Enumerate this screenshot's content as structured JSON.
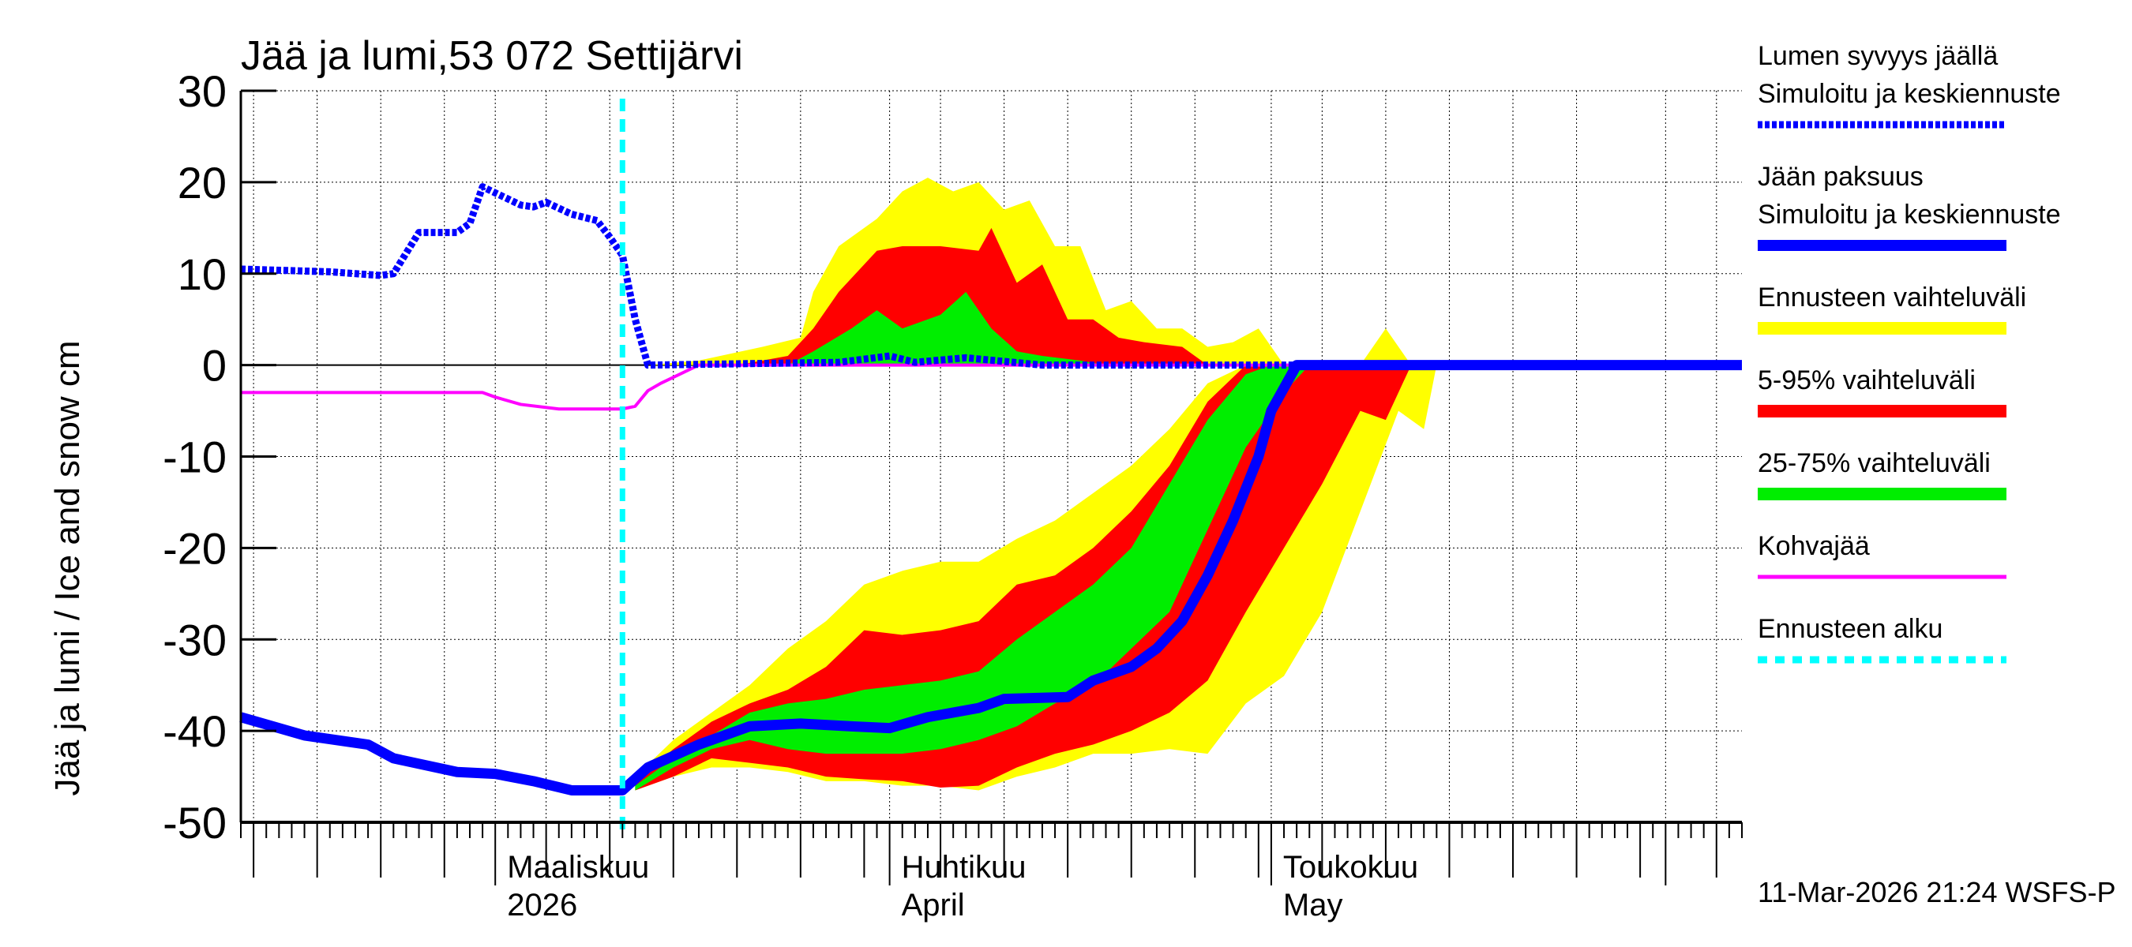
{
  "chart_data": {
    "type": "area",
    "title": "Jää ja lumi,53 072 Settijärvi",
    "ylabel": "Jää ja lumi / Ice and snow    cm",
    "ylim": [
      -50,
      30
    ],
    "yticks": [
      30,
      20,
      10,
      0,
      -10,
      -20,
      -30,
      -40,
      -50
    ],
    "xlim": [
      "2026-02-09",
      "2026-06-07"
    ],
    "xtick_labels": [
      {
        "date": "2026-03-01",
        "line1": "Maaliskuu",
        "line2": "2026"
      },
      {
        "date": "2026-04-01",
        "line1": "Huhtikuu",
        "line2": "April"
      },
      {
        "date": "2026-05-01",
        "line1": "Toukokuu",
        "line2": "May"
      }
    ],
    "grid": true,
    "legend_placement": "right",
    "forecast_start": "2026-03-11",
    "timestamp": "11-Mar-2026 21:24 WSFS-P",
    "legend": [
      {
        "line1": "Lumen syvyys jäällä",
        "line2": "Simuloitu ja keskiennuste",
        "color": "#0000ff",
        "style": "dotted"
      },
      {
        "line1": "Jään paksuus",
        "line2": "Simuloitu ja keskiennuste",
        "color": "#0000ff",
        "style": "solid"
      },
      {
        "line1": "Ennusteen vaihteluväli",
        "color": "#ffff00",
        "style": "band"
      },
      {
        "line1": "5-95% vaihteluväli",
        "color": "#ff0000",
        "style": "band"
      },
      {
        "line1": "25-75% vaihteluväli",
        "color": "#00ee00",
        "style": "band"
      },
      {
        "line1": "Kohvajää",
        "color": "#ff00ff",
        "style": "solid"
      },
      {
        "line1": "Ennusteen alku",
        "color": "#00ffff",
        "style": "dashed"
      }
    ],
    "bands": {
      "ice_yellow": {
        "upper": [
          [
            "2026-03-12",
            -45
          ],
          [
            "2026-03-15",
            -41
          ],
          [
            "2026-03-18",
            -38
          ],
          [
            "2026-03-21",
            -35
          ],
          [
            "2026-03-24",
            -31
          ],
          [
            "2026-03-27",
            -28
          ],
          [
            "2026-03-30",
            -24
          ],
          [
            "2026-04-02",
            -22.5
          ],
          [
            "2026-04-05",
            -21.5
          ],
          [
            "2026-04-08",
            -21.5
          ],
          [
            "2026-04-11",
            -19
          ],
          [
            "2026-04-14",
            -17
          ],
          [
            "2026-04-17",
            -14
          ],
          [
            "2026-04-20",
            -11
          ],
          [
            "2026-04-23",
            -7
          ],
          [
            "2026-04-26",
            -2
          ],
          [
            "2026-04-29",
            0
          ],
          [
            "2026-05-16",
            0
          ]
        ],
        "lower": [
          [
            "2026-03-12",
            -46.5
          ],
          [
            "2026-03-15",
            -45
          ],
          [
            "2026-03-18",
            -44
          ],
          [
            "2026-03-21",
            -44
          ],
          [
            "2026-03-24",
            -44.5
          ],
          [
            "2026-03-27",
            -45.5
          ],
          [
            "2026-03-30",
            -45.5
          ],
          [
            "2026-04-02",
            -46
          ],
          [
            "2026-04-05",
            -46
          ],
          [
            "2026-04-08",
            -46.5
          ],
          [
            "2026-04-11",
            -45
          ],
          [
            "2026-04-14",
            -44
          ],
          [
            "2026-04-17",
            -42.5
          ],
          [
            "2026-04-20",
            -42.5
          ],
          [
            "2026-04-23",
            -42
          ],
          [
            "2026-04-26",
            -42.5
          ],
          [
            "2026-04-29",
            -37
          ],
          [
            "2026-05-02",
            -34
          ],
          [
            "2026-05-05",
            -27
          ],
          [
            "2026-05-08",
            -16
          ],
          [
            "2026-05-11",
            -5
          ],
          [
            "2026-05-13",
            -7
          ],
          [
            "2026-05-14",
            0
          ],
          [
            "2026-05-16",
            0
          ]
        ]
      },
      "ice_red": {
        "upper": [
          [
            "2026-03-12",
            -45.5
          ],
          [
            "2026-03-15",
            -42
          ],
          [
            "2026-03-18",
            -39
          ],
          [
            "2026-03-21",
            -37
          ],
          [
            "2026-03-24",
            -35.5
          ],
          [
            "2026-03-27",
            -33
          ],
          [
            "2026-03-30",
            -29
          ],
          [
            "2026-04-02",
            -29.5
          ],
          [
            "2026-04-05",
            -29
          ],
          [
            "2026-04-08",
            -28
          ],
          [
            "2026-04-11",
            -24
          ],
          [
            "2026-04-14",
            -23
          ],
          [
            "2026-04-17",
            -20
          ],
          [
            "2026-04-20",
            -16
          ],
          [
            "2026-04-23",
            -11
          ],
          [
            "2026-04-26",
            -4
          ],
          [
            "2026-04-29",
            0
          ],
          [
            "2026-05-12",
            0
          ]
        ],
        "lower": [
          [
            "2026-03-12",
            -46.5
          ],
          [
            "2026-03-15",
            -45
          ],
          [
            "2026-03-18",
            -43
          ],
          [
            "2026-03-21",
            -43.5
          ],
          [
            "2026-03-24",
            -44
          ],
          [
            "2026-03-27",
            -45
          ],
          [
            "2026-03-30",
            -45.3
          ],
          [
            "2026-04-02",
            -45.5
          ],
          [
            "2026-04-05",
            -46.2
          ],
          [
            "2026-04-08",
            -46
          ],
          [
            "2026-04-11",
            -44
          ],
          [
            "2026-04-14",
            -42.5
          ],
          [
            "2026-04-17",
            -41.5
          ],
          [
            "2026-04-20",
            -40
          ],
          [
            "2026-04-23",
            -38
          ],
          [
            "2026-04-26",
            -34.5
          ],
          [
            "2026-04-29",
            -27
          ],
          [
            "2026-05-02",
            -20
          ],
          [
            "2026-05-05",
            -13
          ],
          [
            "2026-05-08",
            -5
          ],
          [
            "2026-05-10",
            -6
          ],
          [
            "2026-05-12",
            0
          ]
        ]
      },
      "ice_green": {
        "upper": [
          [
            "2026-03-12",
            -46
          ],
          [
            "2026-03-15",
            -43
          ],
          [
            "2026-03-18",
            -40.5
          ],
          [
            "2026-03-21",
            -38
          ],
          [
            "2026-03-24",
            -37
          ],
          [
            "2026-03-27",
            -36.5
          ],
          [
            "2026-03-30",
            -35.5
          ],
          [
            "2026-04-02",
            -35
          ],
          [
            "2026-04-05",
            -34.5
          ],
          [
            "2026-04-08",
            -33.5
          ],
          [
            "2026-04-11",
            -30
          ],
          [
            "2026-04-14",
            -27
          ],
          [
            "2026-04-17",
            -24
          ],
          [
            "2026-04-20",
            -20
          ],
          [
            "2026-04-23",
            -13
          ],
          [
            "2026-04-26",
            -6
          ],
          [
            "2026-04-29",
            -1
          ],
          [
            "2026-05-01",
            0
          ],
          [
            "2026-05-04",
            0
          ]
        ],
        "lower": [
          [
            "2026-03-12",
            -46.5
          ],
          [
            "2026-03-15",
            -44
          ],
          [
            "2026-03-18",
            -42
          ],
          [
            "2026-03-21",
            -41
          ],
          [
            "2026-03-24",
            -42
          ],
          [
            "2026-03-27",
            -42.5
          ],
          [
            "2026-03-30",
            -42.5
          ],
          [
            "2026-04-02",
            -42.5
          ],
          [
            "2026-04-05",
            -42
          ],
          [
            "2026-04-08",
            -41
          ],
          [
            "2026-04-11",
            -39.5
          ],
          [
            "2026-04-14",
            -37
          ],
          [
            "2026-04-17",
            -35
          ],
          [
            "2026-04-20",
            -31
          ],
          [
            "2026-04-23",
            -27
          ],
          [
            "2026-04-26",
            -18
          ],
          [
            "2026-04-29",
            -9
          ],
          [
            "2026-05-02",
            -3
          ],
          [
            "2026-05-04",
            0
          ]
        ]
      },
      "snow_yellow": [
        [
          "2026-03-13",
          0
        ],
        [
          "2026-03-17",
          0.5
        ],
        [
          "2026-03-22",
          2
        ],
        [
          "2026-03-25",
          3
        ],
        [
          "2026-03-26",
          8
        ],
        [
          "2026-03-28",
          13
        ],
        [
          "2026-03-31",
          16
        ],
        [
          "2026-04-02",
          19
        ],
        [
          "2026-04-04",
          20.5
        ],
        [
          "2026-04-06",
          19
        ],
        [
          "2026-04-08",
          20
        ],
        [
          "2026-04-10",
          17
        ],
        [
          "2026-04-12",
          18
        ],
        [
          "2026-04-14",
          13
        ],
        [
          "2026-04-16",
          13
        ],
        [
          "2026-04-18",
          6
        ],
        [
          "2026-04-20",
          7
        ],
        [
          "2026-04-22",
          4
        ],
        [
          "2026-04-24",
          4
        ],
        [
          "2026-04-26",
          2
        ],
        [
          "2026-04-28",
          2.5
        ],
        [
          "2026-04-30",
          4
        ],
        [
          "2026-05-02",
          0
        ],
        [
          "2026-05-08",
          0
        ],
        [
          "2026-05-10",
          4
        ],
        [
          "2026-05-12",
          0
        ]
      ],
      "snow_red": [
        [
          "2026-03-20",
          0
        ],
        [
          "2026-03-22",
          0.5
        ],
        [
          "2026-03-24",
          1
        ],
        [
          "2026-03-26",
          4
        ],
        [
          "2026-03-28",
          8
        ],
        [
          "2026-03-31",
          12.5
        ],
        [
          "2026-04-02",
          13
        ],
        [
          "2026-04-05",
          13
        ],
        [
          "2026-04-08",
          12.5
        ],
        [
          "2026-04-09",
          15
        ],
        [
          "2026-04-11",
          9
        ],
        [
          "2026-04-13",
          11
        ],
        [
          "2026-04-15",
          5
        ],
        [
          "2026-04-17",
          5
        ],
        [
          "2026-04-19",
          3
        ],
        [
          "2026-04-21",
          2.5
        ],
        [
          "2026-04-24",
          2
        ],
        [
          "2026-04-26",
          0
        ]
      ],
      "snow_green": [
        [
          "2026-03-24",
          0
        ],
        [
          "2026-03-26",
          1.5
        ],
        [
          "2026-03-29",
          4
        ],
        [
          "2026-03-31",
          6
        ],
        [
          "2026-04-02",
          4
        ],
        [
          "2026-04-05",
          5.5
        ],
        [
          "2026-04-07",
          8
        ],
        [
          "2026-04-09",
          4
        ],
        [
          "2026-04-11",
          1.5
        ],
        [
          "2026-04-13",
          1
        ],
        [
          "2026-04-16",
          0.5
        ],
        [
          "2026-04-18",
          0
        ]
      ]
    },
    "series": [
      {
        "name": "Lumen syvyys jäällä",
        "values": [
          [
            "2026-02-09",
            10.5
          ],
          [
            "2026-02-16",
            10.2
          ],
          [
            "2026-02-20",
            9.8
          ],
          [
            "2026-02-21",
            10
          ],
          [
            "2026-02-23",
            14.5
          ],
          [
            "2026-02-26",
            14.5
          ],
          [
            "2026-02-27",
            15.5
          ],
          [
            "2026-02-28",
            19.5
          ],
          [
            "2026-03-03",
            17.5
          ],
          [
            "2026-03-04",
            17.3
          ],
          [
            "2026-03-05",
            17.8
          ],
          [
            "2026-03-07",
            16.5
          ],
          [
            "2026-03-09",
            15.8
          ],
          [
            "2026-03-10",
            14
          ],
          [
            "2026-03-11",
            12
          ],
          [
            "2026-03-12",
            5
          ],
          [
            "2026-03-13",
            0
          ],
          [
            "2026-03-28",
            0.3
          ],
          [
            "2026-04-01",
            1
          ],
          [
            "2026-04-03",
            0.3
          ],
          [
            "2026-04-07",
            0.8
          ],
          [
            "2026-04-10",
            0.4
          ],
          [
            "2026-04-13",
            0
          ],
          [
            "2026-06-07",
            0
          ]
        ]
      },
      {
        "name": "Jään paksuus",
        "values": [
          [
            "2026-02-09",
            -38.5
          ],
          [
            "2026-02-14",
            -40.5
          ],
          [
            "2026-02-19",
            -41.5
          ],
          [
            "2026-02-21",
            -43
          ],
          [
            "2026-02-26",
            -44.5
          ],
          [
            "2026-03-01",
            -44.7
          ],
          [
            "2026-03-04",
            -45.5
          ],
          [
            "2026-03-07",
            -46.5
          ],
          [
            "2026-03-11",
            -46.5
          ],
          [
            "2026-03-13",
            -44
          ],
          [
            "2026-03-17",
            -41.5
          ],
          [
            "2026-03-21",
            -39.5
          ],
          [
            "2026-03-25",
            -39.2
          ],
          [
            "2026-03-29",
            -39.5
          ],
          [
            "2026-04-01",
            -39.7
          ],
          [
            "2026-04-04",
            -38.5
          ],
          [
            "2026-04-08",
            -37.5
          ],
          [
            "2026-04-10",
            -36.5
          ],
          [
            "2026-04-15",
            -36.3
          ],
          [
            "2026-04-17",
            -34.5
          ],
          [
            "2026-04-20",
            -33
          ],
          [
            "2026-04-22",
            -31
          ],
          [
            "2026-04-24",
            -28
          ],
          [
            "2026-04-26",
            -23
          ],
          [
            "2026-04-28",
            -17
          ],
          [
            "2026-04-30",
            -10
          ],
          [
            "2026-05-01",
            -5
          ],
          [
            "2026-05-03",
            0
          ],
          [
            "2026-06-07",
            0
          ]
        ]
      },
      {
        "name": "Kohvajää",
        "values": [
          [
            "2026-02-09",
            -3
          ],
          [
            "2026-02-28",
            -3
          ],
          [
            "2026-03-01",
            -3.5
          ],
          [
            "2026-03-03",
            -4.3
          ],
          [
            "2026-03-06",
            -4.8
          ],
          [
            "2026-03-11",
            -4.8
          ],
          [
            "2026-03-12",
            -4.5
          ],
          [
            "2026-03-13",
            -2.8
          ],
          [
            "2026-03-14",
            -2
          ],
          [
            "2026-03-17",
            0
          ],
          [
            "2026-06-07",
            0
          ]
        ]
      }
    ]
  }
}
